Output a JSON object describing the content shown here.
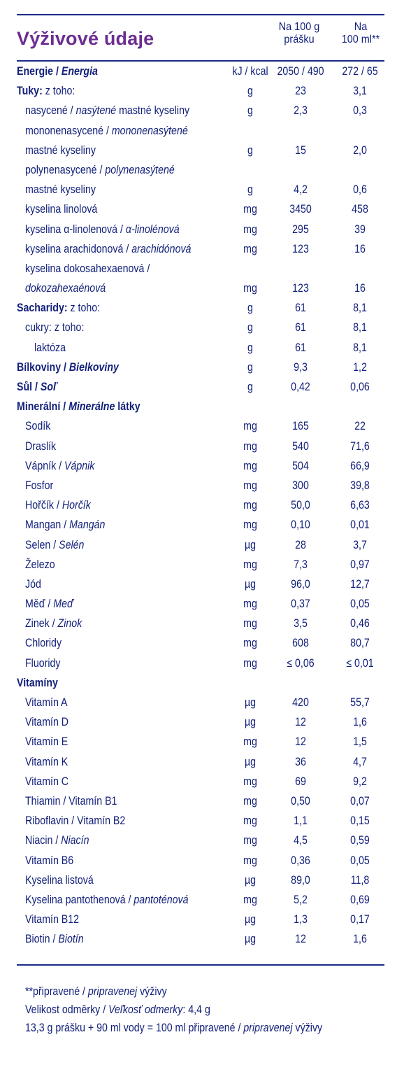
{
  "title": "Výživové údaje",
  "header": {
    "col1_line1": "Na 100 g",
    "col1_line2": "prášku",
    "col2_line1": "Na",
    "col2_line2": "100 ml**"
  },
  "rows": [
    {
      "parts": [
        {
          "t": "Energie / ",
          "s": "b"
        },
        {
          "t": "Energia",
          "s": "bi"
        }
      ],
      "indent": 0,
      "unit": "kJ / kcal",
      "v1": "2050 / 490",
      "v2": "272 / 65"
    },
    {
      "parts": [
        {
          "t": "Tuky:",
          "s": "b"
        },
        {
          "t": " z toho:",
          "s": ""
        }
      ],
      "indent": 0,
      "unit": "g",
      "v1": "23",
      "v2": "3,1"
    },
    {
      "parts": [
        {
          "t": "nasycené / ",
          "s": ""
        },
        {
          "t": "nasýtené",
          "s": "i"
        },
        {
          "t": " mastné kyseliny",
          "s": ""
        }
      ],
      "indent": 1,
      "unit": "g",
      "v1": "2,3",
      "v2": "0,3"
    },
    {
      "parts": [
        {
          "t": "mononenasycené / ",
          "s": ""
        },
        {
          "t": "mononenasýtené",
          "s": "i"
        }
      ],
      "indent": 1,
      "unit": "",
      "v1": "",
      "v2": ""
    },
    {
      "parts": [
        {
          "t": "mastné kyseliny",
          "s": ""
        }
      ],
      "indent": 1,
      "unit": "g",
      "v1": "15",
      "v2": "2,0"
    },
    {
      "parts": [
        {
          "t": "polynenasycené / ",
          "s": ""
        },
        {
          "t": "polynenasýtené",
          "s": "i"
        }
      ],
      "indent": 1,
      "unit": "",
      "v1": "",
      "v2": ""
    },
    {
      "parts": [
        {
          "t": "mastné kyseliny",
          "s": ""
        }
      ],
      "indent": 1,
      "unit": "g",
      "v1": "4,2",
      "v2": "0,6"
    },
    {
      "parts": [
        {
          "t": "kyselina linolová",
          "s": ""
        }
      ],
      "indent": 1,
      "unit": "mg",
      "v1": "3450",
      "v2": "458"
    },
    {
      "parts": [
        {
          "t": "kyselina α-linolenová / ",
          "s": ""
        },
        {
          "t": "α-linolénová",
          "s": "i"
        }
      ],
      "indent": 1,
      "unit": "mg",
      "v1": "295",
      "v2": "39"
    },
    {
      "parts": [
        {
          "t": "kyselina arachidonová / ",
          "s": ""
        },
        {
          "t": "arachidónová",
          "s": "i"
        }
      ],
      "indent": 1,
      "unit": "mg",
      "v1": "123",
      "v2": "16"
    },
    {
      "parts": [
        {
          "t": "kyselina dokosahexaenová /",
          "s": ""
        }
      ],
      "indent": 1,
      "unit": "",
      "v1": "",
      "v2": ""
    },
    {
      "parts": [
        {
          "t": "dokozahexaénová",
          "s": "i"
        }
      ],
      "indent": 1,
      "unit": "mg",
      "v1": "123",
      "v2": "16"
    },
    {
      "parts": [
        {
          "t": "Sacharidy:",
          "s": "b"
        },
        {
          "t": " z toho:",
          "s": ""
        }
      ],
      "indent": 0,
      "unit": "g",
      "v1": "61",
      "v2": "8,1"
    },
    {
      "parts": [
        {
          "t": "cukry: z toho:",
          "s": ""
        }
      ],
      "indent": 1,
      "unit": "g",
      "v1": "61",
      "v2": "8,1"
    },
    {
      "parts": [
        {
          "t": "laktóza",
          "s": ""
        }
      ],
      "indent": 2,
      "unit": "g",
      "v1": "61",
      "v2": "8,1"
    },
    {
      "parts": [
        {
          "t": "Bílkoviny / ",
          "s": "b"
        },
        {
          "t": "Bielkoviny",
          "s": "bi"
        }
      ],
      "indent": 0,
      "unit": "g",
      "v1": "9,3",
      "v2": "1,2"
    },
    {
      "parts": [
        {
          "t": "Sůl / ",
          "s": "b"
        },
        {
          "t": "Soľ",
          "s": "bi"
        }
      ],
      "indent": 0,
      "unit": "g",
      "v1": "0,42",
      "v2": "0,06"
    },
    {
      "parts": [
        {
          "t": "Minerální / ",
          "s": "b"
        },
        {
          "t": "Minerálne",
          "s": "bi"
        },
        {
          "t": " látky",
          "s": "b"
        }
      ],
      "indent": 0,
      "unit": "",
      "v1": "",
      "v2": ""
    },
    {
      "parts": [
        {
          "t": "Sodík",
          "s": ""
        }
      ],
      "indent": 1,
      "unit": "mg",
      "v1": "165",
      "v2": "22"
    },
    {
      "parts": [
        {
          "t": "Draslík",
          "s": ""
        }
      ],
      "indent": 1,
      "unit": "mg",
      "v1": "540",
      "v2": "71,6"
    },
    {
      "parts": [
        {
          "t": "Vápník / ",
          "s": ""
        },
        {
          "t": "Vápnik",
          "s": "i"
        }
      ],
      "indent": 1,
      "unit": "mg",
      "v1": "504",
      "v2": "66,9"
    },
    {
      "parts": [
        {
          "t": "Fosfor",
          "s": ""
        }
      ],
      "indent": 1,
      "unit": "mg",
      "v1": "300",
      "v2": "39,8"
    },
    {
      "parts": [
        {
          "t": "Hořčík / ",
          "s": ""
        },
        {
          "t": "Horčík",
          "s": "i"
        }
      ],
      "indent": 1,
      "unit": "mg",
      "v1": "50,0",
      "v2": "6,63"
    },
    {
      "parts": [
        {
          "t": "Mangan / ",
          "s": ""
        },
        {
          "t": "Mangán",
          "s": "i"
        }
      ],
      "indent": 1,
      "unit": "mg",
      "v1": "0,10",
      "v2": "0,01"
    },
    {
      "parts": [
        {
          "t": "Selen / ",
          "s": ""
        },
        {
          "t": "Selén",
          "s": "i"
        }
      ],
      "indent": 1,
      "unit": "µg",
      "v1": "28",
      "v2": "3,7"
    },
    {
      "parts": [
        {
          "t": "Železo",
          "s": ""
        }
      ],
      "indent": 1,
      "unit": "mg",
      "v1": "7,3",
      "v2": "0,97"
    },
    {
      "parts": [
        {
          "t": "Jód",
          "s": ""
        }
      ],
      "indent": 1,
      "unit": "µg",
      "v1": "96,0",
      "v2": "12,7"
    },
    {
      "parts": [
        {
          "t": "Měď / ",
          "s": ""
        },
        {
          "t": "Meď",
          "s": "i"
        }
      ],
      "indent": 1,
      "unit": "mg",
      "v1": "0,37",
      "v2": "0,05"
    },
    {
      "parts": [
        {
          "t": "Zinek / ",
          "s": ""
        },
        {
          "t": "Zinok",
          "s": "i"
        }
      ],
      "indent": 1,
      "unit": "mg",
      "v1": "3,5",
      "v2": "0,46"
    },
    {
      "parts": [
        {
          "t": "Chloridy",
          "s": ""
        }
      ],
      "indent": 1,
      "unit": "mg",
      "v1": "608",
      "v2": "80,7"
    },
    {
      "parts": [
        {
          "t": "Fluoridy",
          "s": ""
        }
      ],
      "indent": 1,
      "unit": "mg",
      "v1": "≤ 0,06",
      "v2": "≤ 0,01"
    },
    {
      "parts": [
        {
          "t": "Vitamíny",
          "s": "b"
        }
      ],
      "indent": 0,
      "unit": "",
      "v1": "",
      "v2": ""
    },
    {
      "parts": [
        {
          "t": "Vitamín A",
          "s": ""
        }
      ],
      "indent": 1,
      "unit": "µg",
      "v1": "420",
      "v2": "55,7"
    },
    {
      "parts": [
        {
          "t": "Vitamín D",
          "s": ""
        }
      ],
      "indent": 1,
      "unit": "µg",
      "v1": "12",
      "v2": "1,6"
    },
    {
      "parts": [
        {
          "t": "Vitamín E",
          "s": ""
        }
      ],
      "indent": 1,
      "unit": "mg",
      "v1": "12",
      "v2": "1,5"
    },
    {
      "parts": [
        {
          "t": "Vitamín K",
          "s": ""
        }
      ],
      "indent": 1,
      "unit": "µg",
      "v1": "36",
      "v2": "4,7"
    },
    {
      "parts": [
        {
          "t": "Vitamín C",
          "s": ""
        }
      ],
      "indent": 1,
      "unit": "mg",
      "v1": "69",
      "v2": "9,2"
    },
    {
      "parts": [
        {
          "t": "Thiamin / Vitamín B1",
          "s": ""
        }
      ],
      "indent": 1,
      "unit": "mg",
      "v1": "0,50",
      "v2": "0,07"
    },
    {
      "parts": [
        {
          "t": "Riboflavin / Vitamín B2",
          "s": ""
        }
      ],
      "indent": 1,
      "unit": "mg",
      "v1": "1,1",
      "v2": "0,15"
    },
    {
      "parts": [
        {
          "t": "Niacin / ",
          "s": ""
        },
        {
          "t": "Niacín",
          "s": "i"
        }
      ],
      "indent": 1,
      "unit": "mg",
      "v1": "4,5",
      "v2": "0,59"
    },
    {
      "parts": [
        {
          "t": "Vitamín B6",
          "s": ""
        }
      ],
      "indent": 1,
      "unit": "mg",
      "v1": "0,36",
      "v2": "0,05"
    },
    {
      "parts": [
        {
          "t": "Kyselina listová",
          "s": ""
        }
      ],
      "indent": 1,
      "unit": "µg",
      "v1": "89,0",
      "v2": "11,8"
    },
    {
      "parts": [
        {
          "t": "Kyselina pantothenová / ",
          "s": ""
        },
        {
          "t": "pantoténová",
          "s": "i"
        }
      ],
      "indent": 1,
      "unit": "mg",
      "v1": "5,2",
      "v2": "0,69"
    },
    {
      "parts": [
        {
          "t": "Vitamín B12",
          "s": ""
        }
      ],
      "indent": 1,
      "unit": "µg",
      "v1": "1,3",
      "v2": "0,17"
    },
    {
      "parts": [
        {
          "t": "Biotin / ",
          "s": ""
        },
        {
          "t": "Biotín",
          "s": "i"
        }
      ],
      "indent": 1,
      "unit": "µg",
      "v1": "12",
      "v2": "1,6"
    }
  ],
  "footer": [
    [
      {
        "t": "**připravené / ",
        "s": ""
      },
      {
        "t": "pripravenej",
        "s": "i"
      },
      {
        "t": " výživy",
        "s": ""
      }
    ],
    [
      {
        "t": "Velikost odměrky / ",
        "s": ""
      },
      {
        "t": "Veľkosť odmerky",
        "s": "i"
      },
      {
        "t": ": 4,4 g",
        "s": ""
      }
    ],
    [
      {
        "t": "13,3 g prášku + 90 ml vody = 100 ml připravené / ",
        "s": ""
      },
      {
        "t": "pripravenej",
        "s": "i"
      },
      {
        "t": " výživy",
        "s": ""
      }
    ]
  ],
  "colors": {
    "title": "#6c2d91",
    "text": "#12207a",
    "rule": "#1a2a8a"
  }
}
